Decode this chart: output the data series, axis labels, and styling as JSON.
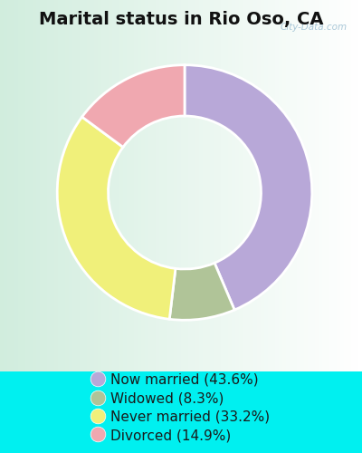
{
  "title": "Marital status in Rio Oso, CA",
  "categories": [
    "Now married",
    "Widowed",
    "Never married",
    "Divorced"
  ],
  "values": [
    43.6,
    8.3,
    33.2,
    14.9
  ],
  "colors": [
    "#b8a8d8",
    "#b0c498",
    "#f0f07a",
    "#f0a8b0"
  ],
  "legend_labels": [
    "Now married (43.6%)",
    "Widowed (8.3%)",
    "Never married (33.2%)",
    "Divorced (14.9%)"
  ],
  "panel_color": "#d8ede0",
  "outer_bg": "#00f0f0",
  "watermark": "City-Data.com",
  "title_fontsize": 14,
  "legend_fontsize": 11,
  "plot_order": [
    0,
    1,
    2,
    3
  ],
  "start_angle": 90
}
